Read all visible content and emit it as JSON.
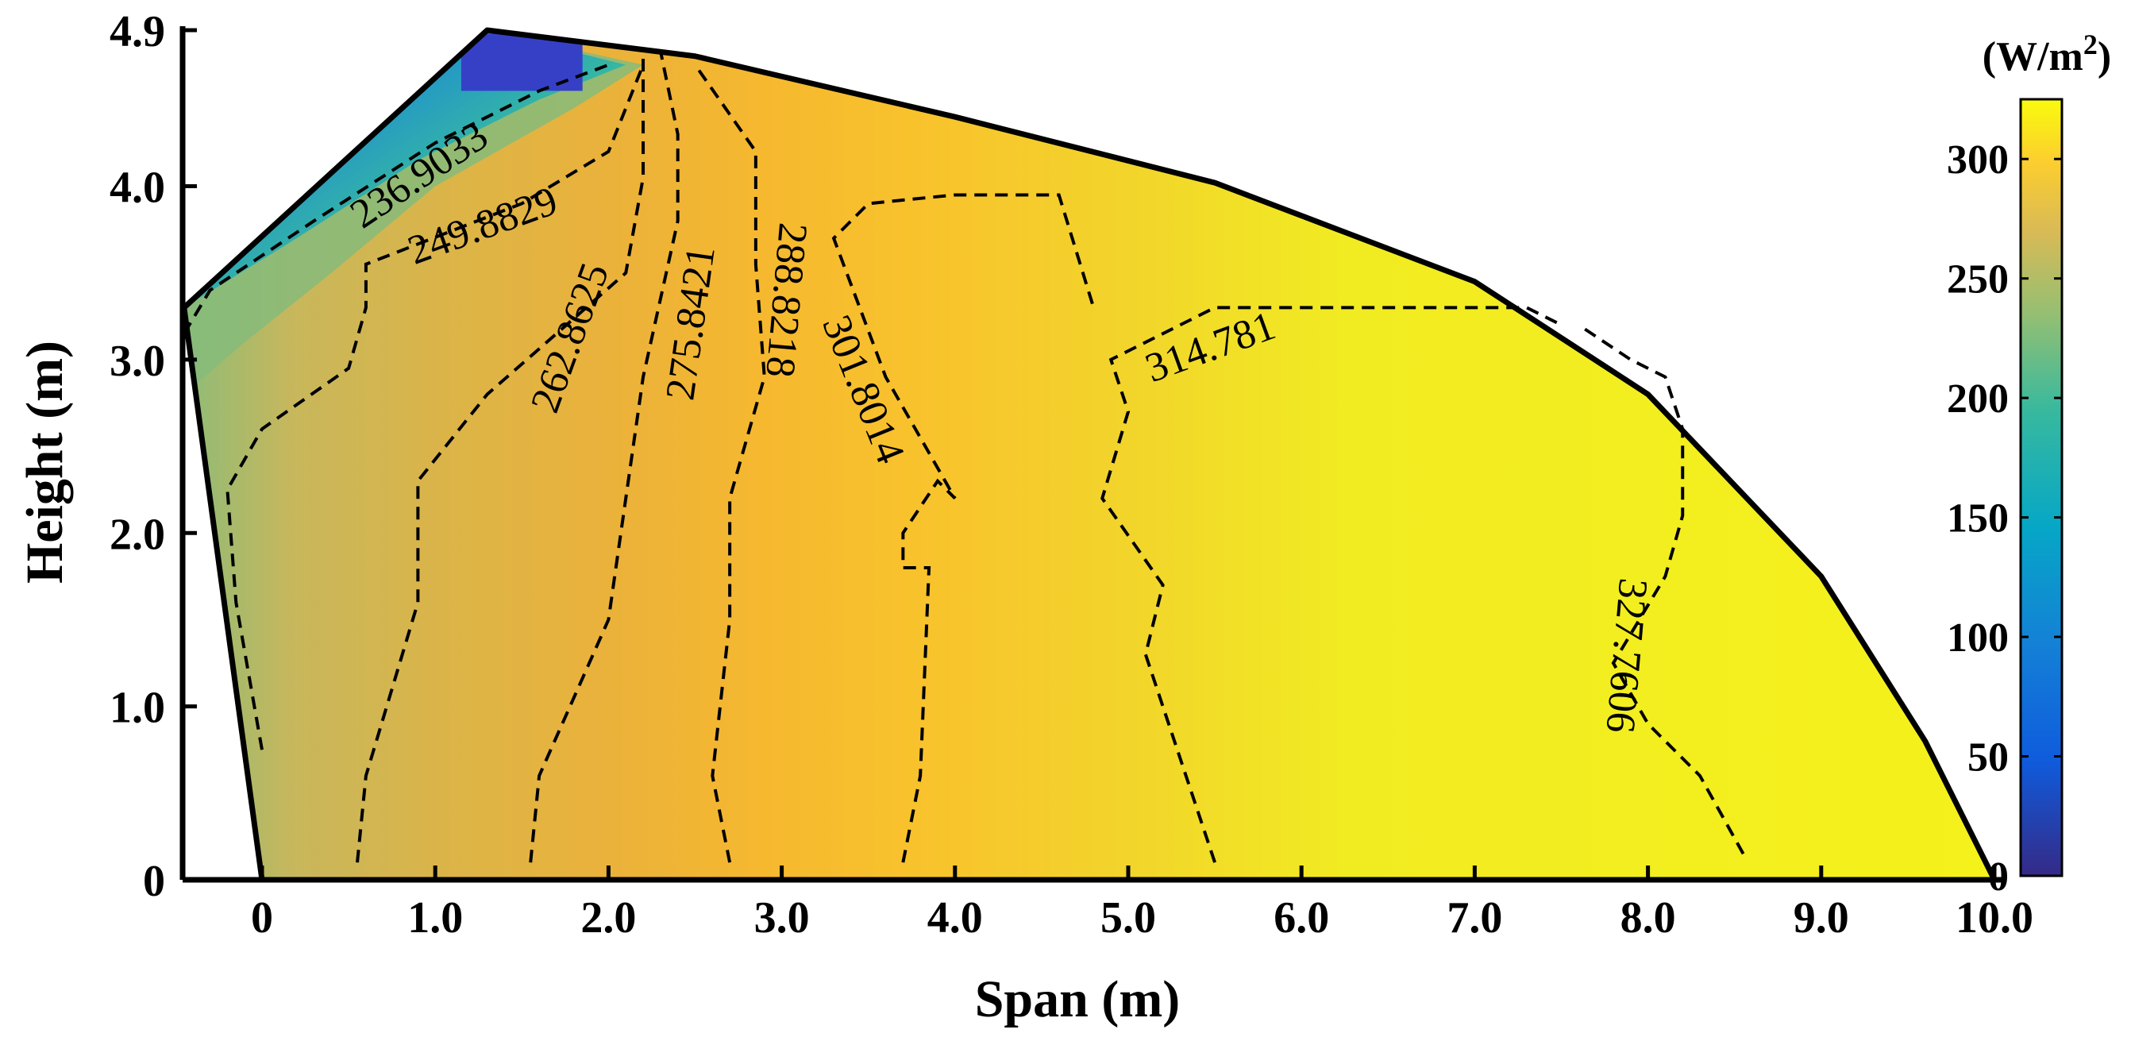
{
  "chart_data": {
    "type": "heatmap",
    "subtype": "filled-contour",
    "title": "",
    "xlabel": "Span (m)",
    "ylabel": "Height (m)",
    "xlim": [
      -0.45,
      10.0
    ],
    "ylim": [
      0,
      4.9
    ],
    "x_ticks": [
      "0",
      "1.0",
      "2.0",
      "3.0",
      "4.0",
      "5.0",
      "6.0",
      "7.0",
      "8.0",
      "9.0",
      "10.0"
    ],
    "y_ticks": [
      "0",
      "1.0",
      "2.0",
      "3.0",
      "4.0",
      "4.9"
    ],
    "x_tick_values": [
      0,
      1,
      2,
      3,
      4,
      5,
      6,
      7,
      8,
      9,
      10
    ],
    "y_tick_values": [
      0,
      1,
      2,
      3,
      4,
      4.9
    ],
    "colorbar": {
      "unit_label": "(W/m",
      "unit_superscript": "2",
      "unit_close": ")",
      "range": [
        0,
        325
      ],
      "ticks": [
        "0",
        "50",
        "100",
        "150",
        "200",
        "250",
        "300"
      ],
      "tick_values": [
        0,
        50,
        100,
        150,
        200,
        250,
        300
      ],
      "colormap": "parula"
    },
    "boundary": [
      [
        0,
        0
      ],
      [
        -0.45,
        3.3
      ],
      [
        1.3,
        4.9
      ],
      [
        2.5,
        4.75
      ],
      [
        4.0,
        4.4
      ],
      [
        5.5,
        4.02
      ],
      [
        7.0,
        3.45
      ],
      [
        8.0,
        2.8
      ],
      [
        9.0,
        1.75
      ],
      [
        9.6,
        0.8
      ],
      [
        10.0,
        0
      ]
    ],
    "contour_levels": [
      {
        "label": "236.9033",
        "value": 236.9033,
        "color": "#c7b75c",
        "line": [
          [
            -0.45,
            3.15
          ],
          [
            -0.3,
            3.4
          ],
          [
            0.3,
            3.8
          ],
          [
            1.0,
            4.25
          ],
          [
            1.6,
            4.55
          ],
          [
            2.0,
            4.7
          ]
        ],
        "label_pos": [
          0.95,
          4.0
        ],
        "label_angle": -34
      },
      {
        "label": "249.8829",
        "value": 249.8829,
        "color": "#d6b74a",
        "line": [
          [
            0.0,
            0.75
          ],
          [
            -0.15,
            1.6
          ],
          [
            -0.2,
            2.25
          ],
          [
            0.0,
            2.6
          ],
          [
            0.5,
            2.95
          ],
          [
            0.6,
            3.3
          ],
          [
            0.6,
            3.55
          ],
          [
            1.5,
            3.9
          ],
          [
            2.0,
            4.2
          ],
          [
            2.2,
            4.7
          ]
        ],
        "label_pos": [
          1.3,
          3.7
        ],
        "label_angle": -20
      },
      {
        "label": "262.8625",
        "value": 262.8625,
        "color": "#e6b33c",
        "line": [
          [
            0.55,
            0.1
          ],
          [
            0.6,
            0.6
          ],
          [
            0.9,
            1.6
          ],
          [
            0.9,
            2.3
          ],
          [
            1.3,
            2.8
          ],
          [
            2.1,
            3.5
          ],
          [
            2.2,
            4.05
          ],
          [
            2.2,
            4.75
          ]
        ],
        "label_pos": [
          1.85,
          3.1
        ],
        "label_angle": -70
      },
      {
        "label": "275.8421",
        "value": 275.8421,
        "color": "#f2b62f",
        "line": [
          [
            1.55,
            0.1
          ],
          [
            1.6,
            0.6
          ],
          [
            2.0,
            1.5
          ],
          [
            2.1,
            2.2
          ],
          [
            2.2,
            2.9
          ],
          [
            2.4,
            3.8
          ],
          [
            2.4,
            4.3
          ],
          [
            2.3,
            4.78
          ]
        ],
        "label_pos": [
          2.55,
          3.2
        ],
        "label_angle": -82
      },
      {
        "label": "288.8218",
        "value": 288.8218,
        "color": "#f7c12c",
        "line": [
          [
            2.7,
            0.1
          ],
          [
            2.6,
            0.6
          ],
          [
            2.7,
            1.5
          ],
          [
            2.7,
            2.2
          ],
          [
            2.9,
            2.9
          ],
          [
            2.85,
            3.55
          ],
          [
            2.85,
            4.2
          ],
          [
            2.5,
            4.7
          ]
        ],
        "label_pos": [
          2.95,
          3.35
        ],
        "label_angle": 95
      },
      {
        "label": "301.8014",
        "value": 301.8014,
        "color": "#f1d02d",
        "line": [
          [
            3.7,
            0.1
          ],
          [
            3.8,
            0.6
          ],
          [
            3.85,
            1.8
          ],
          [
            3.7,
            1.8
          ],
          [
            3.7,
            2.0
          ],
          [
            3.9,
            2.3
          ],
          [
            4.0,
            2.2
          ],
          [
            3.6,
            2.9
          ],
          [
            3.3,
            3.7
          ],
          [
            3.5,
            3.9
          ],
          [
            4.0,
            3.95
          ],
          [
            4.6,
            3.95
          ],
          [
            4.8,
            3.3
          ]
        ],
        "label_pos": [
          3.4,
          2.8
        ],
        "label_angle": 68
      },
      {
        "label": "314.781",
        "value": 314.781,
        "color": "#f0e525",
        "line": [
          [
            5.5,
            0.1
          ],
          [
            5.3,
            0.7
          ],
          [
            5.1,
            1.3
          ],
          [
            5.2,
            1.7
          ],
          [
            4.85,
            2.2
          ],
          [
            5.0,
            2.7
          ],
          [
            4.9,
            3.0
          ],
          [
            5.5,
            3.3
          ],
          [
            7.3,
            3.3
          ],
          [
            7.5,
            3.2
          ]
        ],
        "label_pos": [
          5.5,
          3.0
        ],
        "label_angle": -20
      },
      {
        "label": "327.7606",
        "value": 327.7606,
        "color": "#f4f01a",
        "line": [
          [
            8.55,
            0.15
          ],
          [
            8.3,
            0.6
          ],
          [
            8.0,
            0.9
          ],
          [
            7.8,
            1.25
          ],
          [
            8.1,
            1.75
          ],
          [
            8.2,
            2.1
          ],
          [
            8.2,
            2.6
          ],
          [
            8.1,
            2.9
          ],
          [
            7.9,
            3.0
          ],
          [
            7.6,
            3.2
          ]
        ],
        "label_pos": [
          7.8,
          1.3
        ],
        "label_angle": 95
      }
    ]
  }
}
